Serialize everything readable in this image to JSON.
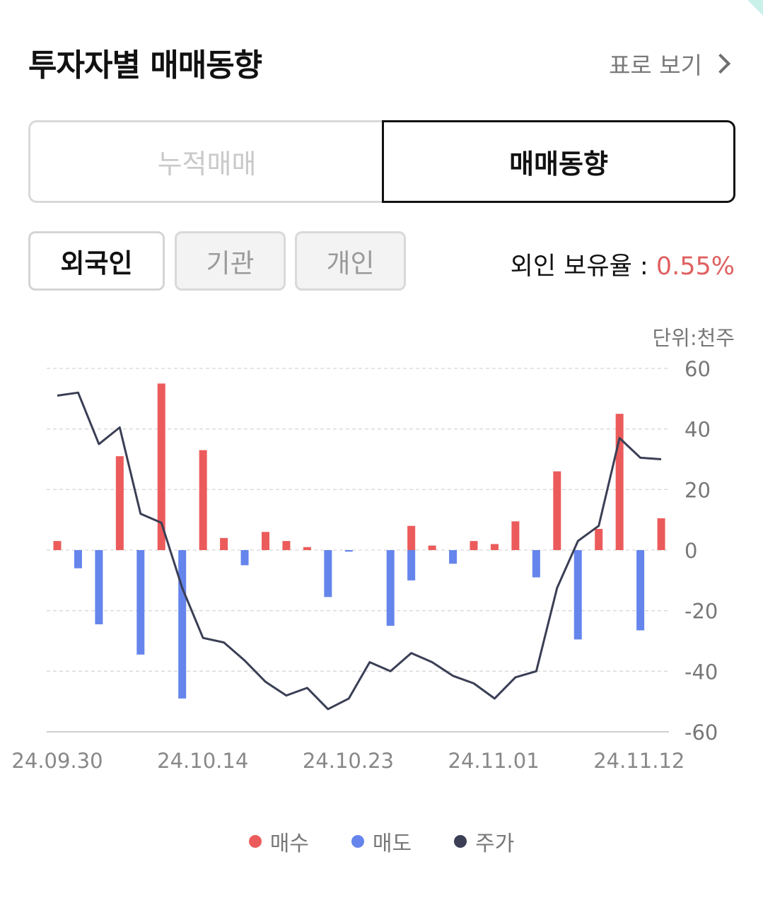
{
  "header": {
    "title": "투자자별 매매동향",
    "table_link": "표로 보기"
  },
  "segment": {
    "left_label": "누적매매",
    "right_label": "매매동향",
    "selected": "매매동향"
  },
  "investors": {
    "tabs": [
      "외국인",
      "기관",
      "개인"
    ],
    "selected": "외국인"
  },
  "ownership": {
    "label": "외인 보유율 : ",
    "value": "0.55%"
  },
  "chart_unit": "단위:천주",
  "colors": {
    "buy": "#ec5b5b",
    "sell": "#6585ec",
    "price": "#3a3f55",
    "grid": "#d8d8d8"
  },
  "chart_data": {
    "type": "bar",
    "ylim": [
      -60,
      60
    ],
    "y_ticks": [
      60,
      40,
      20,
      0,
      -20,
      -40,
      -60
    ],
    "x_tick_labels": [
      "24.09.30",
      "24.10.14",
      "24.10.23",
      "24.11.01",
      "24.11.12"
    ],
    "grid": true,
    "legend_position": "bottom",
    "series": [
      {
        "name": "매수",
        "type": "bar",
        "values": [
          3,
          0,
          0,
          31,
          0,
          55,
          0,
          33,
          4,
          0,
          6,
          3,
          1,
          0,
          0,
          0,
          0,
          8,
          1.5,
          0,
          3,
          2,
          9.5,
          0,
          26,
          0,
          7,
          45,
          0,
          10.5
        ]
      },
      {
        "name": "매도",
        "type": "bar",
        "values": [
          0,
          -6,
          -24.5,
          0,
          -34.5,
          0,
          -49,
          0,
          0,
          -5,
          0,
          0,
          0,
          -15.5,
          -0.5,
          0,
          -25,
          -10,
          0,
          -4.5,
          0,
          0,
          0,
          -9,
          0,
          -29.5,
          0,
          0,
          -26.5,
          0
        ]
      },
      {
        "name": "주가",
        "type": "line",
        "values": [
          51,
          52,
          35,
          40.5,
          12,
          9,
          -12.5,
          -29,
          -30.5,
          -36.5,
          -43.5,
          -48,
          -45.5,
          -52.5,
          -49,
          -37,
          -40,
          -34,
          -37,
          -41.5,
          -44,
          -49,
          -42,
          -40,
          -12.5,
          3,
          8,
          37,
          30.5,
          30
        ]
      }
    ]
  }
}
